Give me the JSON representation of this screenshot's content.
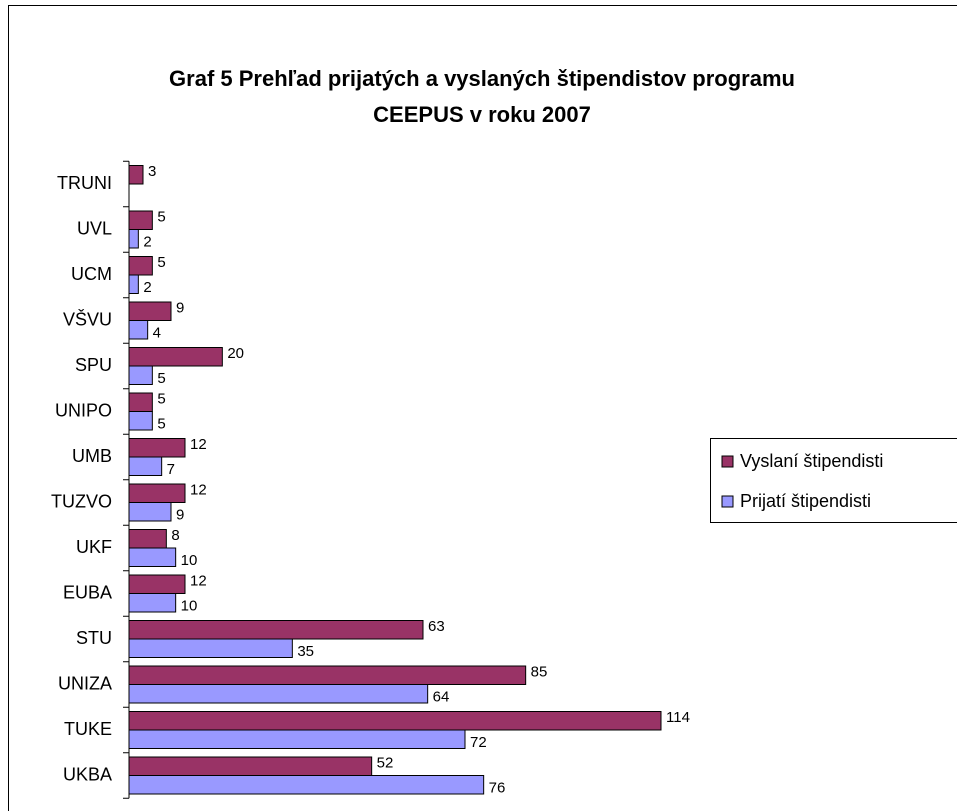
{
  "chart_data": {
    "type": "hbar",
    "title": [
      "Graf 5 Prehľad prijatých a vyslaných štipendistov programu",
      "CEEPUS v roku 2007"
    ],
    "categories": [
      "TRUNI",
      "UVL",
      "UCM",
      "VŠVU",
      "SPU",
      "UNIPO",
      "UMB",
      "TUZVO",
      "UKF",
      "EUBA",
      "STU",
      "UNIZA",
      "TUKE",
      "UKBA"
    ],
    "series": [
      {
        "name": "Vyslaní štipendisti",
        "color": "#993366",
        "values": [
          3,
          5,
          5,
          9,
          20,
          5,
          12,
          12,
          8,
          12,
          63,
          85,
          114,
          52
        ]
      },
      {
        "name": "Prijatí štipendisti",
        "color": "#9999ff",
        "values": [
          null,
          2,
          2,
          4,
          5,
          5,
          7,
          9,
          10,
          10,
          35,
          64,
          72,
          76
        ]
      }
    ],
    "legend": "right"
  }
}
